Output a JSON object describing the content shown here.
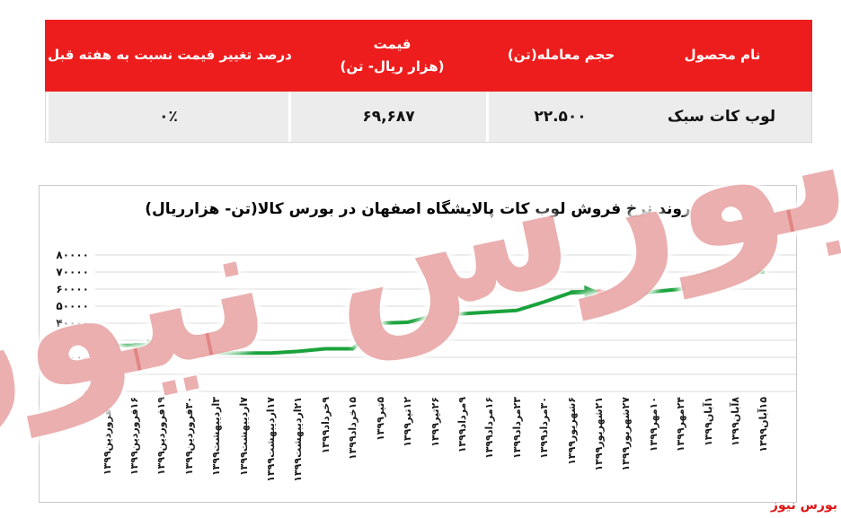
{
  "brand_color": "#ee1d1d",
  "watermark": {
    "text": "بورس نیوز"
  },
  "credit": {
    "text": "بورس نیوز"
  },
  "table": {
    "header_bg": "#ee1d1d",
    "columns": [
      {
        "line1": "نام محصول",
        "line2": ""
      },
      {
        "line1": "حجم معامله(تن)",
        "line2": ""
      },
      {
        "line1": "قیمت",
        "line2": "(هزار ریال- تن)"
      },
      {
        "line1": "درصد تغییر قیمت نسبت به هفته قبل",
        "line2": ""
      }
    ],
    "row": {
      "product": "لوب کات سبک",
      "volume": "۲۲.۵۰۰",
      "price": "۶۹,۶۸۷",
      "change": "۰٪"
    }
  },
  "chart_data": {
    "type": "line",
    "title": "روند نرخ فروش لوب کات پالایشگاه اصفهان در بورس کالا(تن- هزارریال)",
    "categories": [
      "۱۱فروردین۱۳۹۹",
      "۱۶فروردین۱۳۹۹",
      "۱۹فروردین۱۳۹۹",
      "۳۰فروردین۱۳۹۹",
      "۳اردیبهشت۱۳۹۹",
      "۷اردیبهشت۱۳۹۹",
      "۱۷اردیبهشت۱۳۹۹",
      "۲۱اردیبهشت۱۳۹۹",
      "۹خرداد۱۳۹۹",
      "۱۵خرداد۱۳۹۹",
      "۵تیر۱۳۹۹",
      "۱۲تیر۱۳۹۹",
      "۲۶تیر۱۳۹۹",
      "۹مرداد۱۳۹۹",
      "۱۶مرداد۱۳۹۹",
      "۲۳مرداد۱۳۹۹",
      "۳۰مرداد۱۳۹۹",
      "۶شهریور۱۳۹۹",
      "۲۱شهریور۱۳۹۹",
      "۲۷شهریور۱۳۹۹",
      "۱۰مهر۱۳۹۹",
      "۲۴مهر۱۳۹۹",
      "۱آبان۱۳۹۹",
      "۸آبان۱۳۹۹",
      "۱۵آبان۱۳۹۹"
    ],
    "values": [
      27000,
      27000,
      27000,
      24000,
      22500,
      22500,
      22500,
      23500,
      25000,
      25000,
      40000,
      40500,
      44500,
      45500,
      46500,
      47500,
      52500,
      58000,
      58500,
      55000,
      58500,
      60000,
      70000,
      70000,
      70000
    ],
    "ylim": [
      0,
      80000
    ],
    "y_tick_labels": [
      "۸۰۰۰۰",
      "۷۰۰۰۰",
      "۶۰۰۰۰",
      "۵۰۰۰۰",
      "۴۰۰۰۰",
      "۳۰۰۰۰",
      "۲۰۰۰۰",
      "۱۰۰۰۰",
      "۰"
    ],
    "grid": true,
    "legend": "none",
    "line_color": "#1aa23c",
    "arrow_colors": {
      "up": "#1aa23c",
      "down": "#e51f15"
    },
    "annotations": [
      {
        "kind": "arrow",
        "trend": "up",
        "from_index": 1,
        "to_index": 2
      },
      {
        "kind": "arrow",
        "trend": "down",
        "from_index": 2,
        "to_index": 4
      },
      {
        "kind": "arrow",
        "trend": "up",
        "from_index": 17,
        "to_index": 18
      },
      {
        "kind": "arrow",
        "trend": "down",
        "from_index": 18,
        "to_index": 19
      },
      {
        "kind": "arrow",
        "trend": "up",
        "from_index": 23,
        "to_index": 24
      }
    ]
  }
}
